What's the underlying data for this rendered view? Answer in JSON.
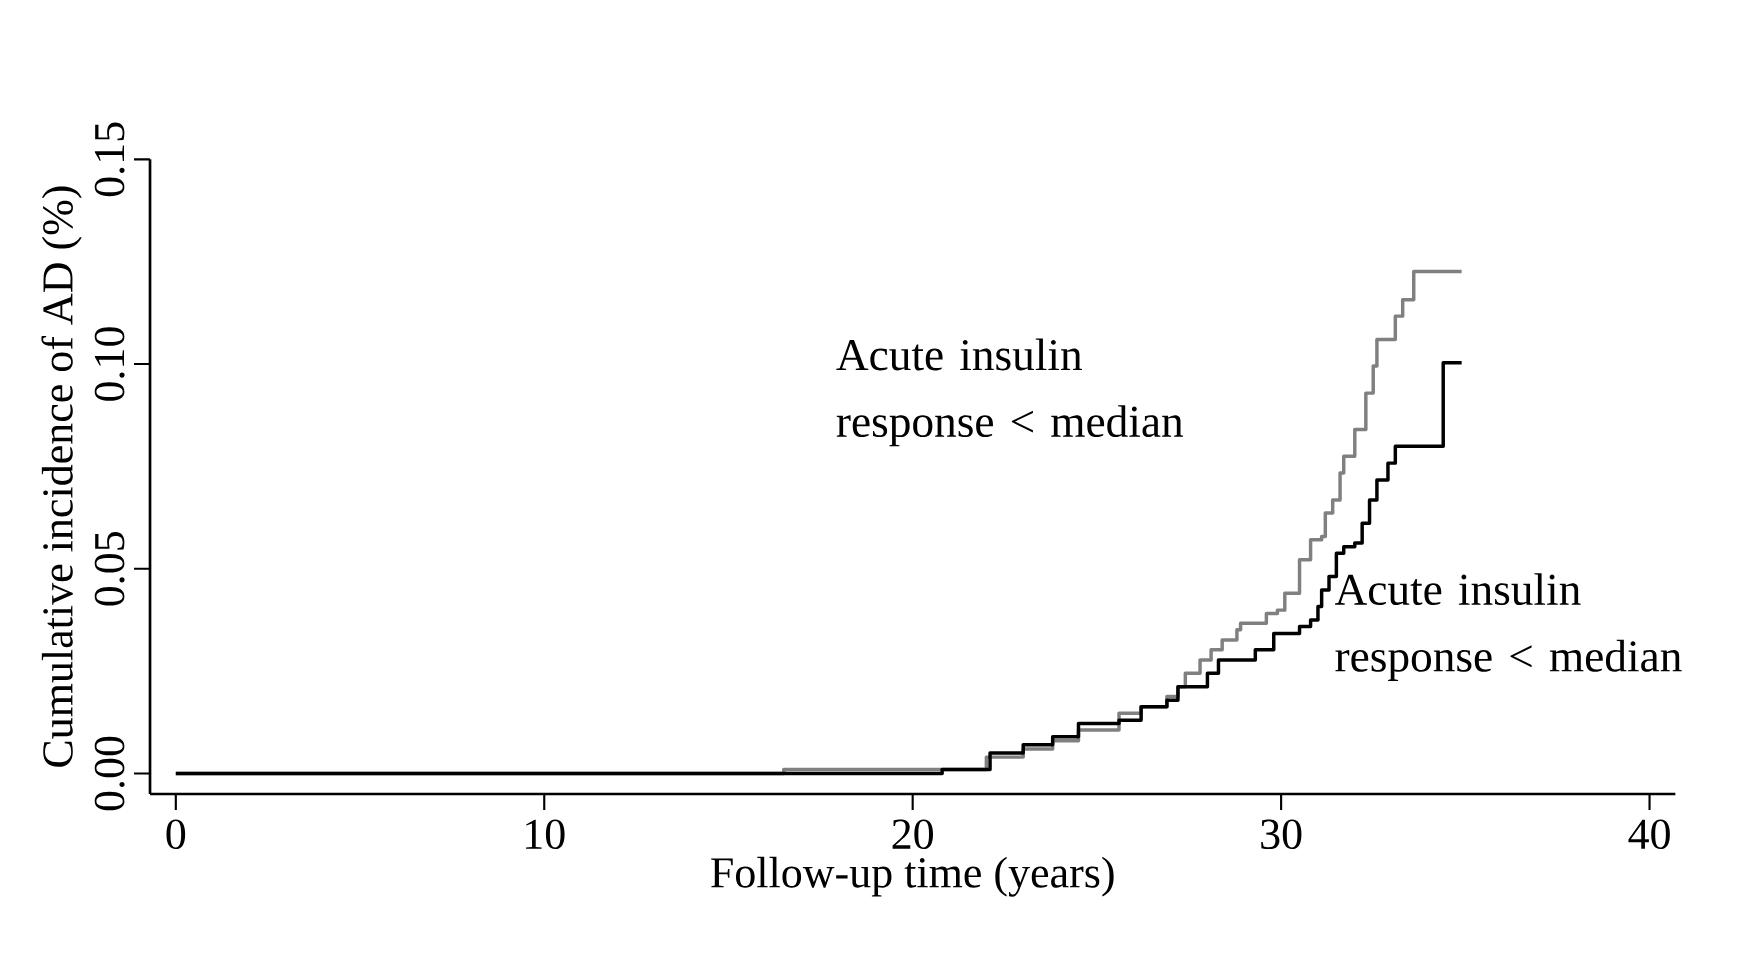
{
  "chart_data": {
    "type": "step",
    "xlabel": "Follow-up time (years)",
    "ylabel": "Cumulative incidence of AD (%)",
    "xlim": [
      -0.7,
      40.7
    ],
    "ylim": [
      -0.005,
      0.15
    ],
    "xticks": [
      0,
      10,
      20,
      30,
      40
    ],
    "yticks": [
      {
        "value": 0,
        "label": "0.00"
      },
      {
        "value": 0.05,
        "label": "0.05"
      },
      {
        "value": 0.1,
        "label": "0.10"
      },
      {
        "value": 0.15,
        "label": "0.15"
      }
    ],
    "grid": false,
    "marker": "none",
    "line_style": "solid",
    "series": [
      {
        "color": "#808080",
        "x": [
          0,
          16.5,
          22.0,
          23.0,
          23.8,
          24.5,
          25.6,
          26.2,
          26.9,
          27.2,
          27.4,
          27.8,
          28.1,
          28.4,
          28.8,
          28.9,
          29.6,
          29.9,
          30.1,
          30.5,
          30.8,
          31.1,
          31.2,
          31.4,
          31.6,
          31.7,
          32.0,
          32.3,
          32.5,
          32.6,
          33.1,
          33.3,
          33.6,
          34.9
        ],
        "values": [
          0,
          0.001,
          0.004,
          0.006,
          0.008,
          0.0106,
          0.0147,
          0.0163,
          0.0188,
          0.0212,
          0.0245,
          0.0277,
          0.0302,
          0.0326,
          0.0351,
          0.0367,
          0.0391,
          0.0399,
          0.044,
          0.0522,
          0.0571,
          0.0579,
          0.0636,
          0.0668,
          0.0734,
          0.0775,
          0.084,
          0.0929,
          0.0995,
          0.106,
          0.1117,
          0.1157,
          0.1226,
          0.1226
        ]
      },
      {
        "color": "#000000",
        "x": [
          0,
          20.8,
          22.1,
          23.0,
          23.8,
          24.5,
          25.6,
          26.2,
          26.9,
          27.2,
          28.0,
          28.3,
          29.3,
          29.8,
          30.5,
          30.8,
          31.0,
          31.1,
          31.3,
          31.5,
          31.7,
          32.0,
          32.2,
          32.4,
          32.6,
          32.9,
          33.1,
          34.4,
          34.9
        ],
        "values": [
          0,
          0.001,
          0.005,
          0.007,
          0.009,
          0.0122,
          0.013,
          0.0163,
          0.0179,
          0.0212,
          0.0245,
          0.0277,
          0.0302,
          0.0342,
          0.0359,
          0.0375,
          0.0408,
          0.0448,
          0.0481,
          0.0538,
          0.0554,
          0.0563,
          0.0611,
          0.0668,
          0.0717,
          0.0758,
          0.0799,
          0.1003,
          0.1003
        ]
      }
    ],
    "annotations": [
      "Acute insulin response < median",
      "Acute insulin response < median"
    ]
  }
}
